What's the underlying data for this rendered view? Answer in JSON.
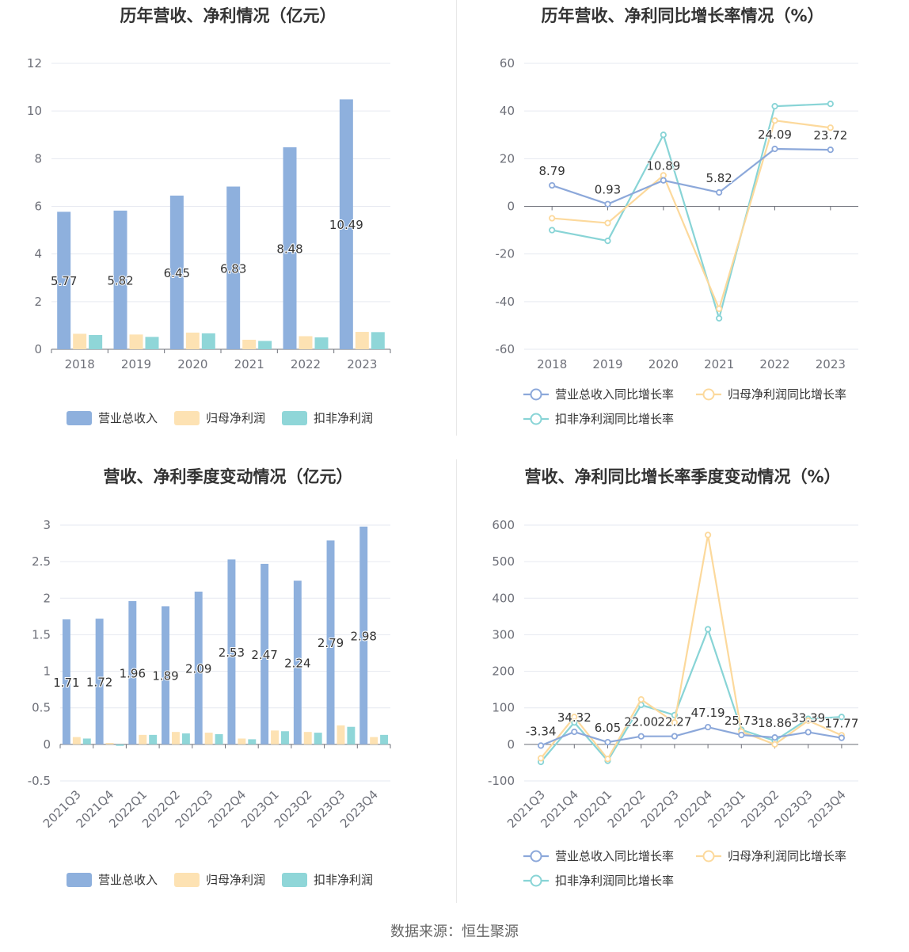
{
  "footer": "数据来源：恒生聚源",
  "colors": {
    "revenue": "#8eb0dd",
    "parent_profit": "#fde2b3",
    "deducted_profit": "#8fd6d8",
    "revenue_line": "#8ca8da",
    "parent_line": "#fcd99c",
    "deducted_line": "#88d4d6",
    "grid": "#e6e9f0",
    "axis": "#6e7079"
  },
  "chart_data": [
    {
      "id": "c1",
      "type": "bar",
      "title": "历年营收、净利情况（亿元）",
      "categories": [
        "2018",
        "2019",
        "2020",
        "2021",
        "2022",
        "2023"
      ],
      "ylim": [
        0,
        12
      ],
      "yticks": [
        0,
        2,
        4,
        6,
        8,
        10,
        12
      ],
      "series": [
        {
          "name": "营业总收入",
          "values": [
            5.77,
            5.82,
            6.45,
            6.83,
            8.48,
            10.49
          ],
          "labels": [
            "5.77",
            "5.82",
            "6.45",
            "6.83",
            "8.48",
            "10.49"
          ]
        },
        {
          "name": "归母净利润",
          "values": [
            0.65,
            0.62,
            0.7,
            0.4,
            0.55,
            0.73
          ]
        },
        {
          "name": "扣非净利润",
          "values": [
            0.6,
            0.52,
            0.67,
            0.35,
            0.5,
            0.72
          ]
        }
      ],
      "legend": "bottom"
    },
    {
      "id": "c2",
      "type": "line",
      "title": "历年营收、净利同比增长率情况（%）",
      "categories": [
        "2018",
        "2019",
        "2020",
        "2021",
        "2022",
        "2023"
      ],
      "ylim": [
        -60,
        60
      ],
      "yticks": [
        -60,
        -40,
        -20,
        0,
        20,
        40,
        60
      ],
      "series": [
        {
          "name": "营业总收入同比增长率",
          "values": [
            8.79,
            0.93,
            10.89,
            5.82,
            24.09,
            23.72
          ],
          "labels": [
            "8.79",
            "0.93",
            "10.89",
            "5.82",
            "24.09",
            "23.72"
          ]
        },
        {
          "name": "归母净利润同比增长率",
          "values": [
            -5,
            -7,
            13,
            -43,
            36,
            33
          ]
        },
        {
          "name": "扣非净利润同比增长率",
          "values": [
            -10,
            -14.5,
            30,
            -47,
            42,
            43
          ]
        }
      ],
      "legend": "bottom"
    },
    {
      "id": "c3",
      "type": "bar",
      "title": "营收、净利季度变动情况（亿元）",
      "categories": [
        "2021Q3",
        "2021Q4",
        "2022Q1",
        "2022Q2",
        "2022Q3",
        "2022Q4",
        "2023Q1",
        "2023Q2",
        "2023Q3",
        "2023Q4"
      ],
      "ylim": [
        -0.5,
        3
      ],
      "yticks": [
        -0.5,
        0,
        0.5,
        1,
        1.5,
        2,
        2.5,
        3
      ],
      "ytick_labels": [
        "-0.5",
        "0",
        "0.5",
        "1",
        "1.5",
        "2",
        "2.5",
        "3"
      ],
      "series": [
        {
          "name": "营业总收入",
          "values": [
            1.71,
            1.72,
            1.96,
            1.89,
            2.09,
            2.53,
            2.47,
            2.24,
            2.79,
            2.98
          ],
          "labels": [
            "1.71",
            "1.72",
            "1.96",
            "1.89",
            "2.09",
            "2.53",
            "2.47",
            "2.24",
            "2.79",
            "2.98"
          ]
        },
        {
          "name": "归母净利润",
          "values": [
            0.1,
            0.02,
            0.13,
            0.17,
            0.16,
            0.08,
            0.19,
            0.17,
            0.26,
            0.1
          ]
        },
        {
          "name": "扣非净利润",
          "values": [
            0.08,
            -0.02,
            0.13,
            0.15,
            0.14,
            0.07,
            0.18,
            0.16,
            0.24,
            0.13
          ]
        }
      ],
      "legend": "bottom"
    },
    {
      "id": "c4",
      "type": "line",
      "title": "营收、净利同比增长率季度变动情况（%）",
      "categories": [
        "2021Q3",
        "2021Q4",
        "2022Q1",
        "2022Q2",
        "2022Q3",
        "2022Q4",
        "2023Q1",
        "2023Q2",
        "2023Q3",
        "2023Q4"
      ],
      "ylim": [
        -100,
        600
      ],
      "yticks": [
        -100,
        0,
        100,
        200,
        300,
        400,
        500,
        600
      ],
      "series": [
        {
          "name": "营业总收入同比增长率",
          "values": [
            -3.34,
            34.32,
            6.05,
            22.0,
            22.27,
            47.19,
            25.73,
            18.86,
            33.39,
            17.77
          ],
          "labels": [
            "-3.34",
            "34.32",
            "6.05",
            "22.00",
            "22.27",
            "47.19",
            "25.73",
            "18.86",
            "33.39",
            "17.77"
          ]
        },
        {
          "name": "归母净利润同比增长率",
          "values": [
            -38,
            75,
            -40,
            123,
            60,
            573,
            35,
            0,
            65,
            25
          ]
        },
        {
          "name": "扣非净利润同比增长率",
          "values": [
            -48,
            60,
            -45,
            108,
            80,
            315,
            40,
            10,
            70,
            75
          ]
        }
      ],
      "legend": "bottom"
    }
  ]
}
